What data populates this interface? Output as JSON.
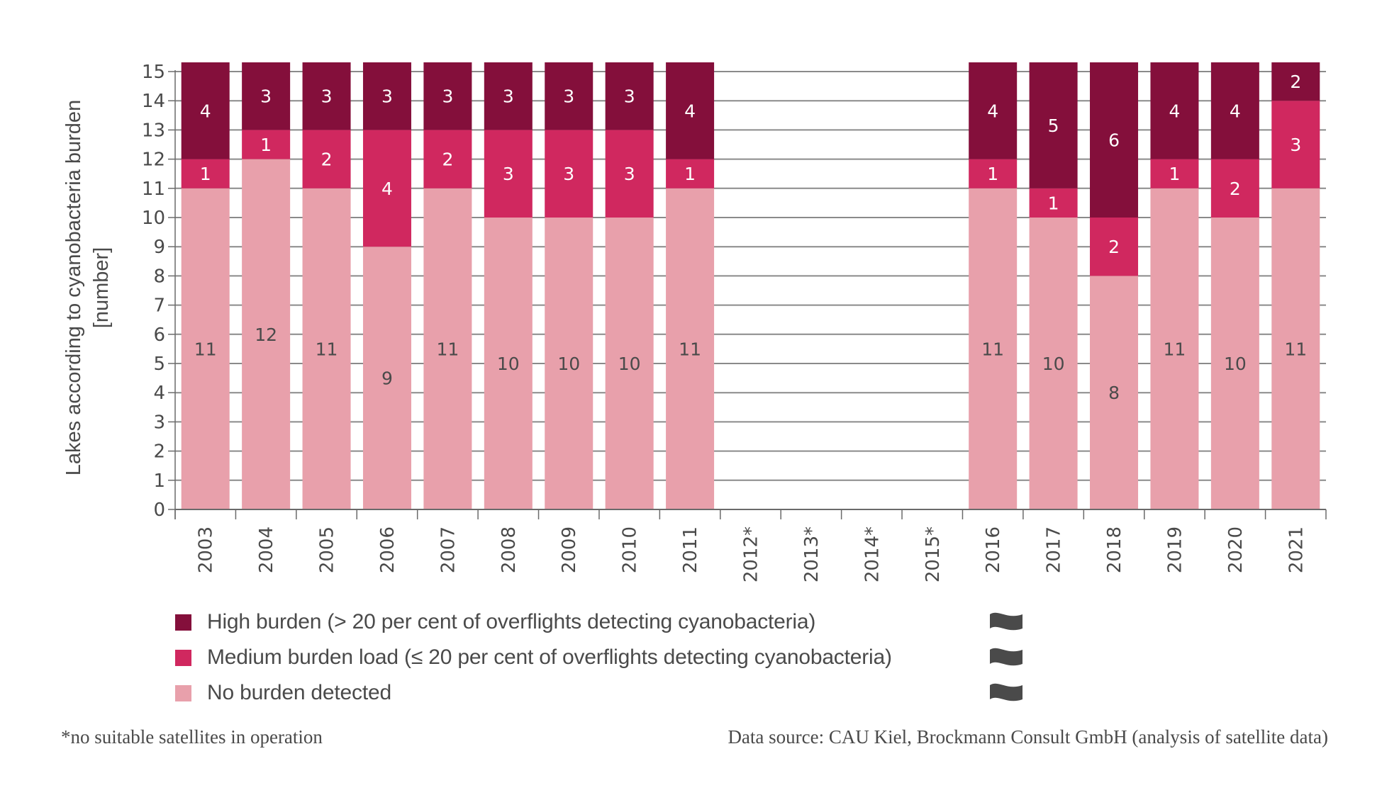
{
  "chart_data": {
    "type": "bar",
    "stacked": true,
    "title": "",
    "xlabel": "",
    "ylabel": "Lakes according to cyanobacteria burden [number]",
    "ylabel_lines": [
      "Lakes according to cyanobacteria burden",
      "[number]"
    ],
    "ylim": [
      0,
      15
    ],
    "yticks": [
      0,
      1,
      2,
      3,
      4,
      5,
      6,
      7,
      8,
      9,
      10,
      11,
      12,
      13,
      14,
      15
    ],
    "grid": true,
    "categories": [
      "2003",
      "2004",
      "2005",
      "2006",
      "2007",
      "2008",
      "2009",
      "2010",
      "2011",
      "2012*",
      "2013*",
      "2014*",
      "2015*",
      "2016",
      "2017",
      "2018",
      "2019",
      "2020",
      "2021"
    ],
    "series": [
      {
        "name": "No burden detected",
        "color": "#e8a0ab",
        "label_color": "#4a4a4a",
        "values": [
          11,
          12,
          11,
          9,
          11,
          10,
          10,
          10,
          11,
          null,
          null,
          null,
          null,
          11,
          10,
          8,
          11,
          10,
          11
        ]
      },
      {
        "name": "Medium burden load (≤ 20 per cent of overflights detecting cyanobacteria)",
        "color": "#d0285f",
        "label_color": "#ffffff",
        "values": [
          1,
          1,
          2,
          4,
          2,
          3,
          3,
          3,
          1,
          null,
          null,
          null,
          null,
          1,
          1,
          2,
          1,
          2,
          3
        ]
      },
      {
        "name": "High burden (> 20 per cent of overflights detecting cyanobacteria)",
        "color": "#840f3b",
        "label_color": "#ffffff",
        "values": [
          4,
          3,
          3,
          3,
          3,
          3,
          3,
          3,
          4,
          null,
          null,
          null,
          null,
          4,
          5,
          6,
          4,
          4,
          2
        ]
      }
    ],
    "legend_position": "bottom-left"
  },
  "legend": {
    "items": [
      {
        "label": "High burden (> 20 per cent of overflights detecting cyanobacteria)",
        "color": "#840f3b",
        "icon": "wave-icon"
      },
      {
        "label": "Medium burden load (≤ 20 per cent of overflights detecting cyanobacteria)",
        "color": "#d0285f",
        "icon": "wave-icon"
      },
      {
        "label": "No burden detected",
        "color": "#e8a0ab",
        "icon": "wave-icon"
      }
    ]
  },
  "footer": {
    "footnote": "*no suitable satellites in operation",
    "source": "Data source: CAU Kiel, Brockmann Consult GmbH (analysis of satellite data)"
  }
}
